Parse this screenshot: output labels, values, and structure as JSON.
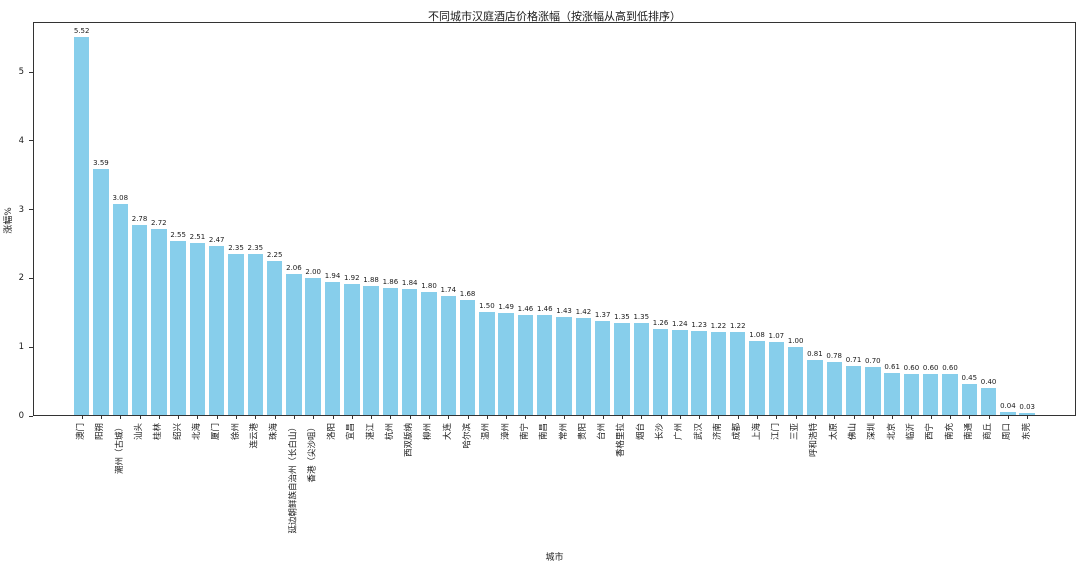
{
  "figure": {
    "background_color": "#ffffff",
    "axis_color": "#333333",
    "text_color": "#1a1a1a"
  },
  "chart_data": {
    "type": "bar",
    "title": "不同城市汉庭酒店价格涨幅（按涨幅从高到低排序）",
    "xlabel": "城市",
    "ylabel": "涨幅%",
    "bar_color": "#87CEEB",
    "grid": false,
    "legend": "none",
    "ylim": [
      0,
      5.73
    ],
    "yticks": [
      0,
      1,
      2,
      3,
      4,
      5
    ],
    "value_label_format": "%.2f",
    "categories": [
      "澳门",
      "阳朔",
      "潮州（古城）",
      "汕头",
      "桂林",
      "绍兴",
      "北海",
      "厦门",
      "徐州",
      "连云港",
      "珠海",
      "延边朝鲜族自治州（长白山）",
      "香港（尖沙咀）",
      "洛阳",
      "宜昌",
      "湛江",
      "杭州",
      "西双版纳",
      "柳州",
      "大连",
      "哈尔滨",
      "温州",
      "漳州",
      "南宁",
      "南昌",
      "常州",
      "贵阳",
      "台州",
      "香格里拉",
      "烟台",
      "长沙",
      "广州",
      "武汉",
      "济南",
      "成都",
      "上海",
      "江门",
      "三亚",
      "呼和浩特",
      "太原",
      "佛山",
      "深圳",
      "北京",
      "临沂",
      "西宁",
      "南充",
      "南通",
      "商丘",
      "周口",
      "东莞"
    ],
    "values": [
      5.52,
      3.59,
      3.08,
      2.78,
      2.72,
      2.55,
      2.51,
      2.47,
      2.35,
      2.35,
      2.25,
      2.06,
      2.0,
      1.94,
      1.92,
      1.88,
      1.86,
      1.84,
      1.8,
      1.74,
      1.68,
      1.5,
      1.49,
      1.46,
      1.46,
      1.43,
      1.42,
      1.37,
      1.35,
      1.35,
      1.26,
      1.24,
      1.23,
      1.22,
      1.22,
      1.08,
      1.07,
      1.0,
      0.81,
      0.78,
      0.71,
      0.7,
      0.61,
      0.6,
      0.6,
      0.6,
      0.45,
      0.4,
      0.04,
      0.03
    ]
  }
}
